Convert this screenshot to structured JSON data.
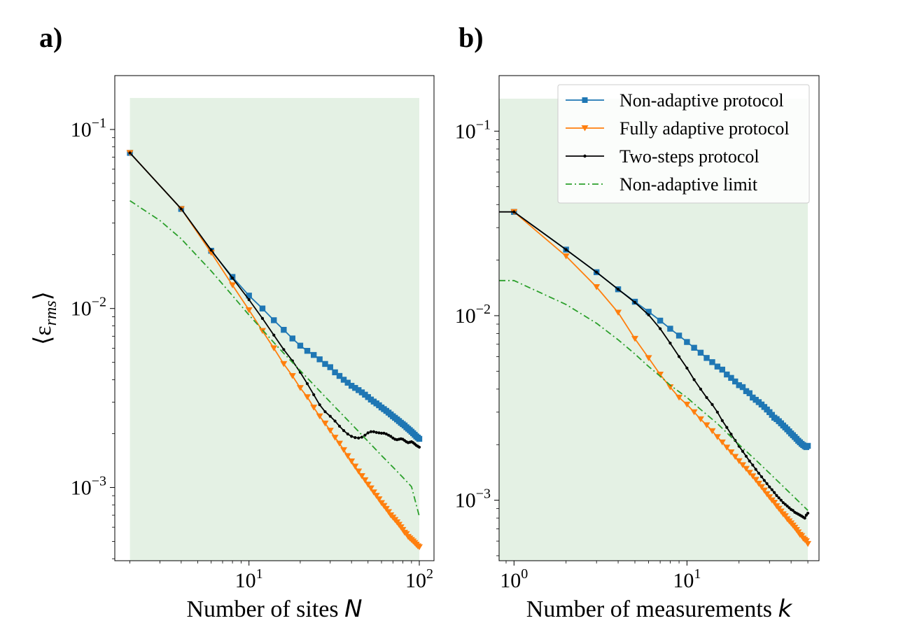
{
  "figure": {
    "panel_a_label": "a)",
    "panel_b_label": "b)"
  },
  "colors": {
    "non_adaptive": "#1f77b4",
    "fully_adaptive": "#ff7f0e",
    "two_steps": "#000000",
    "limit": "#2ca02c",
    "shade": "#e4f1e4"
  },
  "chart_data": [
    {
      "type": "line",
      "panel": "a)",
      "xscale": "log",
      "yscale": "log",
      "xlabel": "Number of sites ",
      "xlabel_var": "N",
      "ylabel": "⟨ε",
      "ylabel_sub": "rms",
      "ylabel_close": "⟩",
      "xlim": [
        1.63,
        122
      ],
      "ylim": [
        0.00039,
        0.2
      ],
      "x_ticks": [
        {
          "value": 10,
          "base": "10",
          "exp": "1"
        },
        {
          "value": 100,
          "base": "10",
          "exp": "2"
        }
      ],
      "y_ticks": [
        {
          "value": 0.001,
          "base": "10",
          "exp": "−3"
        },
        {
          "value": 0.01,
          "base": "10",
          "exp": "−2"
        },
        {
          "value": 0.1,
          "base": "10",
          "exp": "−1"
        }
      ],
      "shade": {
        "x": [
          2,
          100
        ],
        "y": [
          0.00039,
          0.15
        ]
      },
      "series": [
        {
          "name": "Non-adaptive protocol",
          "key": "non_adaptive",
          "marker": "square",
          "x": [
            2,
            4,
            6,
            8,
            10,
            12,
            14,
            16,
            18,
            20,
            22,
            24,
            26,
            28,
            30,
            32,
            34,
            36,
            38,
            40,
            42,
            44,
            46,
            48,
            50,
            52,
            54,
            56,
            58,
            60,
            62,
            64,
            66,
            68,
            70,
            72,
            74,
            76,
            78,
            80,
            82,
            84,
            86,
            88,
            90,
            92,
            94,
            96,
            98,
            100
          ],
          "y": [
            0.074,
            0.036,
            0.021,
            0.015,
            0.0118,
            0.01,
            0.0086,
            0.0076,
            0.0068,
            0.0062,
            0.0058,
            0.0055,
            0.0052,
            0.0049,
            0.0047,
            0.0044,
            0.0042,
            0.004,
            0.00385,
            0.0037,
            0.0036,
            0.0035,
            0.0034,
            0.0033,
            0.0032,
            0.0031,
            0.00302,
            0.00295,
            0.00288,
            0.0028,
            0.00274,
            0.00268,
            0.00262,
            0.00256,
            0.0025,
            0.00245,
            0.0024,
            0.00235,
            0.0023,
            0.00226,
            0.00222,
            0.00217,
            0.00213,
            0.00209,
            0.00205,
            0.00201,
            0.00197,
            0.00193,
            0.0019,
            0.00187
          ]
        },
        {
          "name": "Fully adaptive protocol",
          "key": "fully_adaptive",
          "marker": "triangle-down",
          "x": [
            2,
            4,
            6,
            8,
            10,
            12,
            14,
            16,
            18,
            20,
            22,
            24,
            26,
            28,
            30,
            32,
            34,
            36,
            38,
            40,
            42,
            44,
            46,
            48,
            50,
            52,
            54,
            56,
            58,
            60,
            62,
            64,
            66,
            68,
            70,
            72,
            74,
            76,
            78,
            80,
            82,
            84,
            86,
            88,
            90,
            92,
            94,
            96,
            98,
            100
          ],
          "y": [
            0.074,
            0.036,
            0.0205,
            0.0135,
            0.0098,
            0.0075,
            0.006,
            0.0049,
            0.0042,
            0.0036,
            0.0032,
            0.0028,
            0.0025,
            0.00228,
            0.00208,
            0.0019,
            0.00176,
            0.00162,
            0.0015,
            0.0014,
            0.00131,
            0.00123,
            0.00116,
            0.0011,
            0.00104,
            0.00099,
            0.00094,
            0.0009,
            0.00086,
            0.00082,
            0.00079,
            0.00076,
            0.00073,
            0.0007,
            0.00068,
            0.00066,
            0.00064,
            0.00062,
            0.0006,
            0.00058,
            0.00056,
            0.00055,
            0.00053,
            0.00052,
            0.00051,
            0.0005,
            0.00049,
            0.00048,
            0.00047,
            0.000465
          ]
        },
        {
          "name": "Two-steps protocol",
          "key": "two_steps",
          "marker": "dot",
          "x": [
            2,
            4,
            6,
            8,
            10,
            12,
            14,
            16,
            18,
            20,
            22,
            24,
            26,
            28,
            30,
            32,
            34,
            36,
            38,
            40,
            42,
            44,
            46,
            48,
            50,
            52,
            54,
            56,
            58,
            60,
            62,
            64,
            66,
            68,
            70,
            72,
            74,
            76,
            78,
            80,
            82,
            84,
            86,
            88,
            90,
            92,
            94,
            96,
            98,
            100
          ],
          "y": [
            0.074,
            0.036,
            0.0212,
            0.0148,
            0.0112,
            0.0088,
            0.0071,
            0.0059,
            0.0051,
            0.0044,
            0.0038,
            0.0033,
            0.0029,
            0.00265,
            0.0025,
            0.00235,
            0.0022,
            0.00208,
            0.00199,
            0.00193,
            0.0019,
            0.00189,
            0.00191,
            0.00196,
            0.00202,
            0.00205,
            0.00205,
            0.00203,
            0.00202,
            0.00201,
            0.00201,
            0.00199,
            0.00196,
            0.00193,
            0.00189,
            0.00186,
            0.00185,
            0.00186,
            0.00187,
            0.00186,
            0.00183,
            0.0018,
            0.00178,
            0.00179,
            0.0018,
            0.00178,
            0.00175,
            0.00172,
            0.0017,
            0.00168
          ]
        },
        {
          "name": "Non-adaptive limit",
          "key": "limit",
          "marker": "none",
          "dash": "dashdot",
          "x": [
            2,
            3,
            4,
            5,
            6,
            8,
            10,
            12,
            15,
            20,
            25,
            30,
            40,
            50,
            60,
            70,
            80,
            90,
            100
          ],
          "y": [
            0.04,
            0.031,
            0.0245,
            0.0195,
            0.0162,
            0.0118,
            0.0092,
            0.0076,
            0.006,
            0.0045,
            0.0036,
            0.003,
            0.00226,
            0.00181,
            0.00151,
            0.0013,
            0.00114,
            0.00101,
            0.00069
          ]
        }
      ]
    },
    {
      "type": "line",
      "panel": "b)",
      "xscale": "log",
      "yscale": "log",
      "xlabel": "Number of measurements ",
      "xlabel_var": "k",
      "xlim": [
        0.82,
        58
      ],
      "ylim": [
        0.00047,
        0.2
      ],
      "x_ticks": [
        {
          "value": 1,
          "base": "10",
          "exp": "0"
        },
        {
          "value": 10,
          "base": "10",
          "exp": "1"
        }
      ],
      "y_ticks": [
        {
          "value": 0.001,
          "base": "10",
          "exp": "−3"
        },
        {
          "value": 0.01,
          "base": "10",
          "exp": "−2"
        },
        {
          "value": 0.1,
          "base": "10",
          "exp": "−1"
        }
      ],
      "shade": {
        "x": [
          0.82,
          50
        ],
        "y": [
          0.00047,
          0.15
        ]
      },
      "legend": {
        "location": "upper right"
      },
      "series": [
        {
          "name": "Non-adaptive protocol",
          "key": "non_adaptive",
          "marker": "square",
          "x": [
            1,
            2,
            3,
            4,
            5,
            6,
            7,
            8,
            9,
            10,
            11,
            12,
            13,
            14,
            15,
            16,
            17,
            18,
            19,
            20,
            21,
            22,
            23,
            24,
            25,
            26,
            27,
            28,
            29,
            30,
            31,
            32,
            33,
            34,
            35,
            36,
            37,
            38,
            39,
            40,
            41,
            42,
            43,
            44,
            45,
            46,
            47,
            48,
            49,
            50
          ],
          "y": [
            0.0365,
            0.0228,
            0.0172,
            0.0139,
            0.0119,
            0.0105,
            0.0094,
            0.0085,
            0.0078,
            0.0072,
            0.0067,
            0.0063,
            0.0059,
            0.0056,
            0.0053,
            0.0051,
            0.0048,
            0.0046,
            0.0044,
            0.0042,
            0.0041,
            0.0039,
            0.0038,
            0.0036,
            0.0035,
            0.0034,
            0.0033,
            0.0032,
            0.0031,
            0.003,
            0.0029,
            0.0028,
            0.00275,
            0.00268,
            0.00261,
            0.00254,
            0.00248,
            0.00242,
            0.00236,
            0.0023,
            0.00225,
            0.0022,
            0.00215,
            0.0021,
            0.00206,
            0.00202,
            0.00199,
            0.00196,
            0.00194,
            0.00197
          ]
        },
        {
          "name": "Fully adaptive protocol",
          "key": "fully_adaptive",
          "marker": "triangle-down",
          "x": [
            1,
            2,
            3,
            4,
            5,
            6,
            7,
            8,
            9,
            10,
            11,
            12,
            13,
            14,
            15,
            16,
            17,
            18,
            19,
            20,
            21,
            22,
            23,
            24,
            25,
            26,
            27,
            28,
            29,
            30,
            31,
            32,
            33,
            34,
            35,
            36,
            37,
            38,
            39,
            40,
            41,
            42,
            43,
            44,
            45,
            46,
            47,
            48,
            49,
            50
          ],
          "y": [
            0.0365,
            0.021,
            0.0143,
            0.0104,
            0.0075,
            0.0059,
            0.0048,
            0.0041,
            0.0036,
            0.0033,
            0.003,
            0.00275,
            0.00255,
            0.00237,
            0.0022,
            0.00206,
            0.00193,
            0.00182,
            0.00172,
            0.00163,
            0.00155,
            0.00148,
            0.00141,
            0.00135,
            0.00129,
            0.00123,
            0.00118,
            0.00113,
            0.00108,
            0.00104,
            0.001,
            0.00097,
            0.00093,
            0.0009,
            0.00087,
            0.00084,
            0.00082,
            0.00079,
            0.00077,
            0.00075,
            0.00073,
            0.00071,
            0.00069,
            0.00067,
            0.00065,
            0.00064,
            0.00062,
            0.00061,
            0.0006,
            0.00058
          ]
        },
        {
          "name": "Two-steps protocol",
          "key": "two_steps",
          "marker": "dot",
          "x": [
            0.82,
            1,
            2,
            3,
            4,
            5,
            6,
            7,
            8,
            9,
            10,
            11,
            12,
            13,
            14,
            15,
            16,
            17,
            18,
            19,
            20,
            21,
            22,
            23,
            24,
            25,
            26,
            27,
            28,
            29,
            30,
            31,
            32,
            33,
            34,
            35,
            36,
            37,
            38,
            39,
            40,
            41,
            42,
            43,
            44,
            45,
            46,
            47,
            48,
            49,
            50
          ],
          "y": [
            0.0365,
            0.0365,
            0.0228,
            0.0172,
            0.0139,
            0.0118,
            0.0101,
            0.0085,
            0.0071,
            0.006,
            0.0052,
            0.0045,
            0.004,
            0.0036,
            0.0033,
            0.003,
            0.0027,
            0.00248,
            0.00228,
            0.00211,
            0.00196,
            0.00184,
            0.00173,
            0.00163,
            0.00155,
            0.00147,
            0.0014,
            0.00134,
            0.00128,
            0.00123,
            0.00118,
            0.00114,
            0.0011,
            0.00106,
            0.00103,
            0.001,
            0.00097,
            0.00095,
            0.00093,
            0.00091,
            0.00089,
            0.00088,
            0.00086,
            0.00085,
            0.00084,
            0.00083,
            0.00082,
            0.00081,
            0.0008,
            0.00083,
            0.00085
          ]
        },
        {
          "name": "Non-adaptive limit",
          "key": "limit",
          "marker": "none",
          "dash": "dashdot",
          "x": [
            0.82,
            1,
            2,
            3,
            4,
            5,
            6,
            7,
            8,
            10,
            12,
            15,
            20,
            25,
            30,
            40,
            50
          ],
          "y": [
            0.0155,
            0.0155,
            0.0115,
            0.0091,
            0.0074,
            0.0062,
            0.0053,
            0.0047,
            0.0042,
            0.0036,
            0.0031,
            0.0026,
            0.002,
            0.00165,
            0.0014,
            0.00108,
            0.00088
          ]
        }
      ]
    }
  ]
}
